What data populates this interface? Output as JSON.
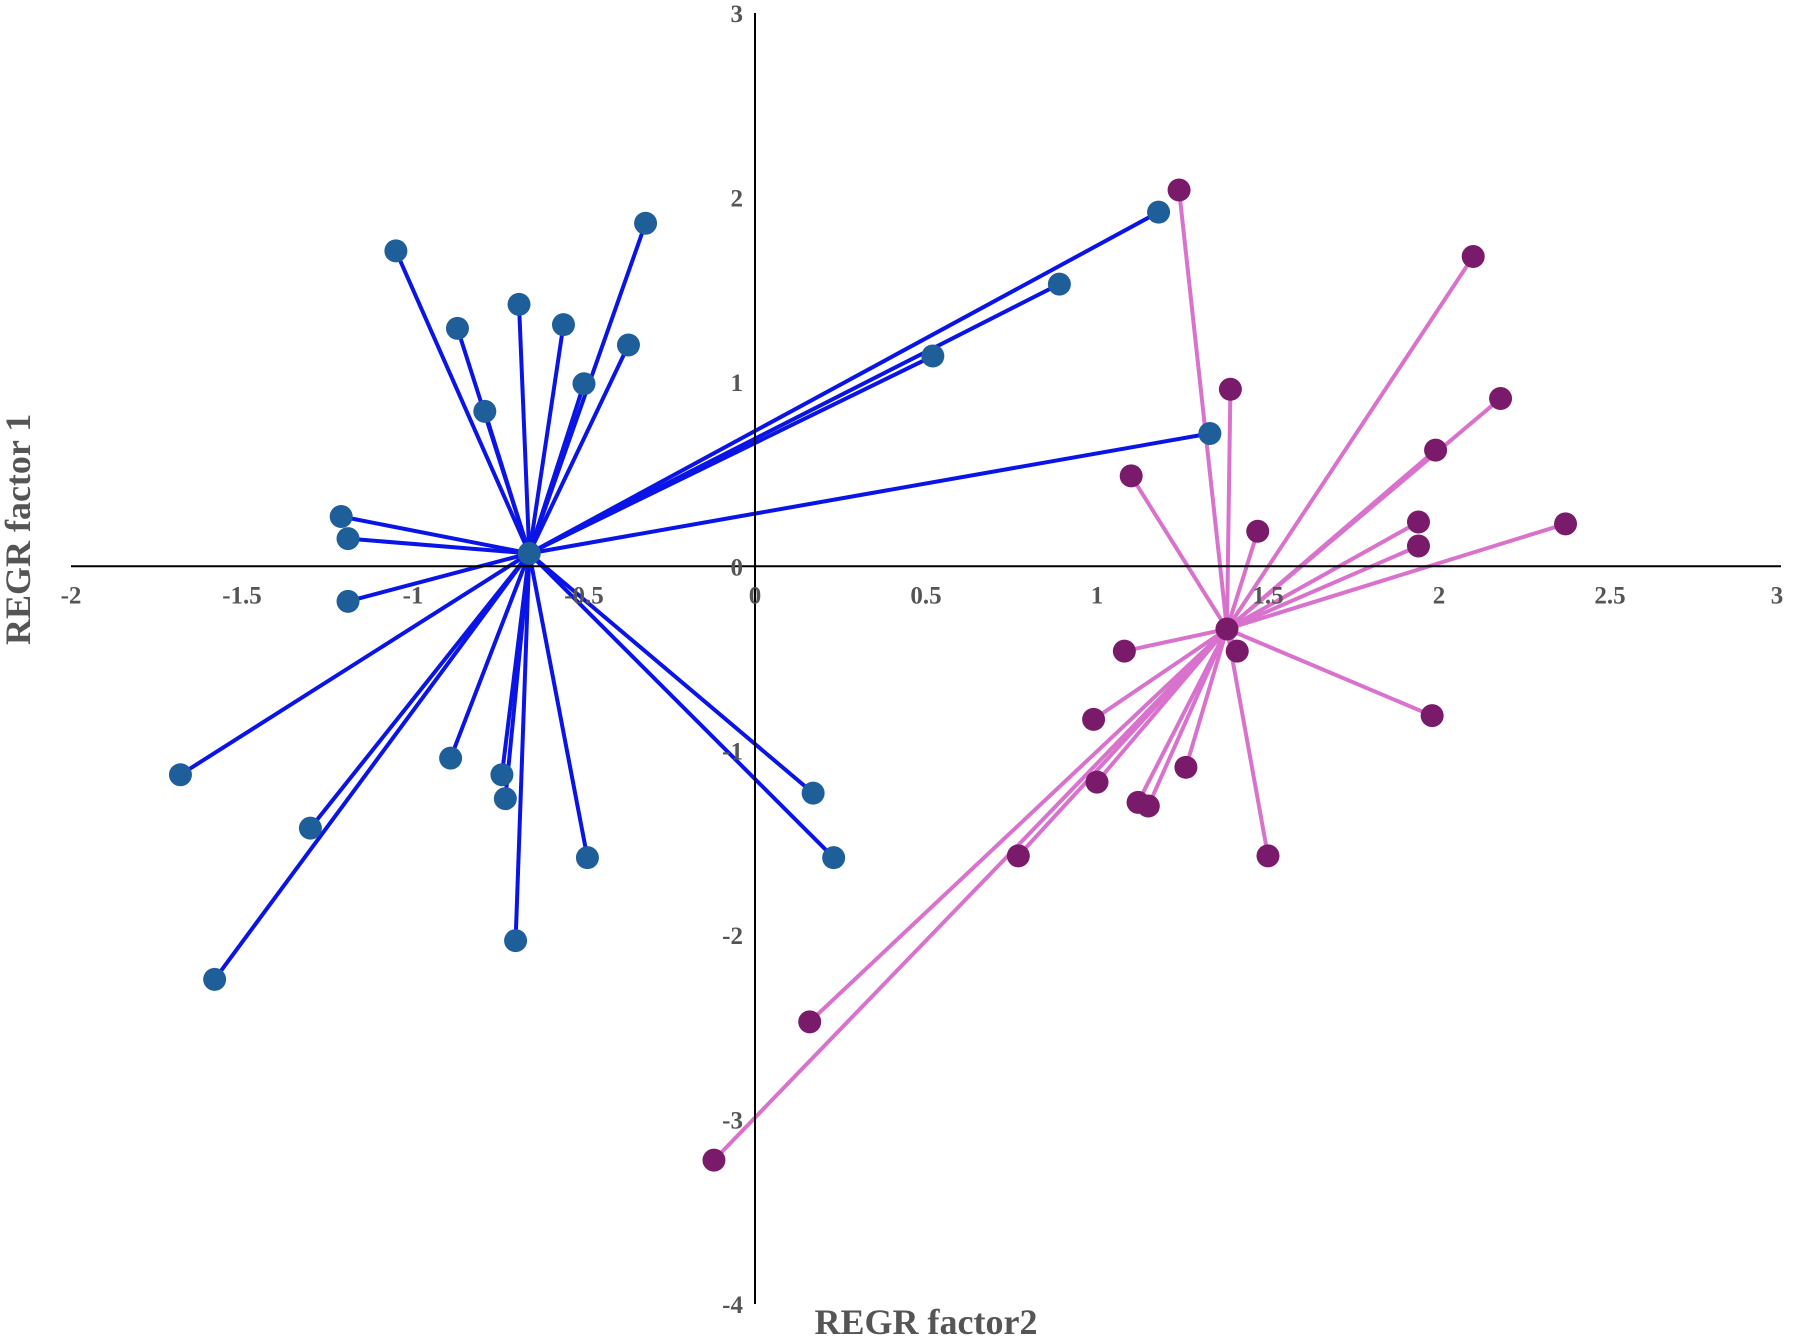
{
  "chart_data": {
    "type": "scatter",
    "title": "",
    "xlabel": "REGR factor2",
    "ylabel": "REGR factor 1",
    "xlim": [
      -2,
      3
    ],
    "ylim": [
      -4,
      3
    ],
    "x_ticks": [
      "-2",
      "-1.5",
      "-1",
      "-0.5",
      "0",
      "0.5",
      "1",
      "1.5",
      "2",
      "2.5",
      "3"
    ],
    "y_ticks": [
      "3",
      "2",
      "1",
      "0",
      "-1",
      "-2",
      "-3",
      "-4"
    ],
    "grid": false,
    "legend": "none",
    "series": [
      {
        "color": "#1f5f99",
        "line_color": "#0a14e6",
        "centroid": {
          "x": -0.66,
          "y": 0.07
        },
        "points": [
          {
            "x": -1.05,
            "y": 1.71
          },
          {
            "x": -0.87,
            "y": 1.29
          },
          {
            "x": -0.69,
            "y": 1.42
          },
          {
            "x": -0.56,
            "y": 1.31
          },
          {
            "x": -0.32,
            "y": 1.86
          },
          {
            "x": -0.37,
            "y": 1.2
          },
          {
            "x": -0.5,
            "y": 0.99
          },
          {
            "x": -0.79,
            "y": 0.84
          },
          {
            "x": 0.52,
            "y": 1.14
          },
          {
            "x": 0.89,
            "y": 1.53
          },
          {
            "x": 1.18,
            "y": 1.92
          },
          {
            "x": 1.33,
            "y": 0.72
          },
          {
            "x": -1.21,
            "y": 0.27
          },
          {
            "x": -1.19,
            "y": 0.15
          },
          {
            "x": -1.19,
            "y": -0.19
          },
          {
            "x": -1.68,
            "y": -1.13
          },
          {
            "x": -1.3,
            "y": -1.42
          },
          {
            "x": -1.58,
            "y": -2.24
          },
          {
            "x": -0.89,
            "y": -1.04
          },
          {
            "x": -0.74,
            "y": -1.13
          },
          {
            "x": -0.73,
            "y": -1.26
          },
          {
            "x": -0.7,
            "y": -2.03
          },
          {
            "x": -0.49,
            "y": -1.58
          },
          {
            "x": 0.17,
            "y": -1.23
          },
          {
            "x": 0.23,
            "y": -1.58
          }
        ]
      },
      {
        "color": "#7a1a6a",
        "line_color": "#d872cc",
        "centroid": {
          "x": 1.38,
          "y": -0.34
        },
        "points": [
          {
            "x": 1.24,
            "y": 2.04
          },
          {
            "x": 2.1,
            "y": 1.68
          },
          {
            "x": 1.39,
            "y": 0.96
          },
          {
            "x": 2.18,
            "y": 0.91
          },
          {
            "x": 1.99,
            "y": 0.63
          },
          {
            "x": 1.1,
            "y": 0.49
          },
          {
            "x": 1.47,
            "y": 0.19
          },
          {
            "x": 1.94,
            "y": 0.24
          },
          {
            "x": 1.94,
            "y": 0.11
          },
          {
            "x": 2.37,
            "y": 0.23
          },
          {
            "x": 1.41,
            "y": -0.46
          },
          {
            "x": 1.08,
            "y": -0.46
          },
          {
            "x": 1.98,
            "y": -0.81
          },
          {
            "x": 0.99,
            "y": -0.83
          },
          {
            "x": 1.0,
            "y": -1.17
          },
          {
            "x": 1.26,
            "y": -1.09
          },
          {
            "x": 1.12,
            "y": -1.28
          },
          {
            "x": 1.15,
            "y": -1.3
          },
          {
            "x": 0.77,
            "y": -1.57
          },
          {
            "x": 1.5,
            "y": -1.57
          },
          {
            "x": 0.16,
            "y": -2.47
          },
          {
            "x": -0.12,
            "y": -3.22
          }
        ]
      }
    ]
  }
}
